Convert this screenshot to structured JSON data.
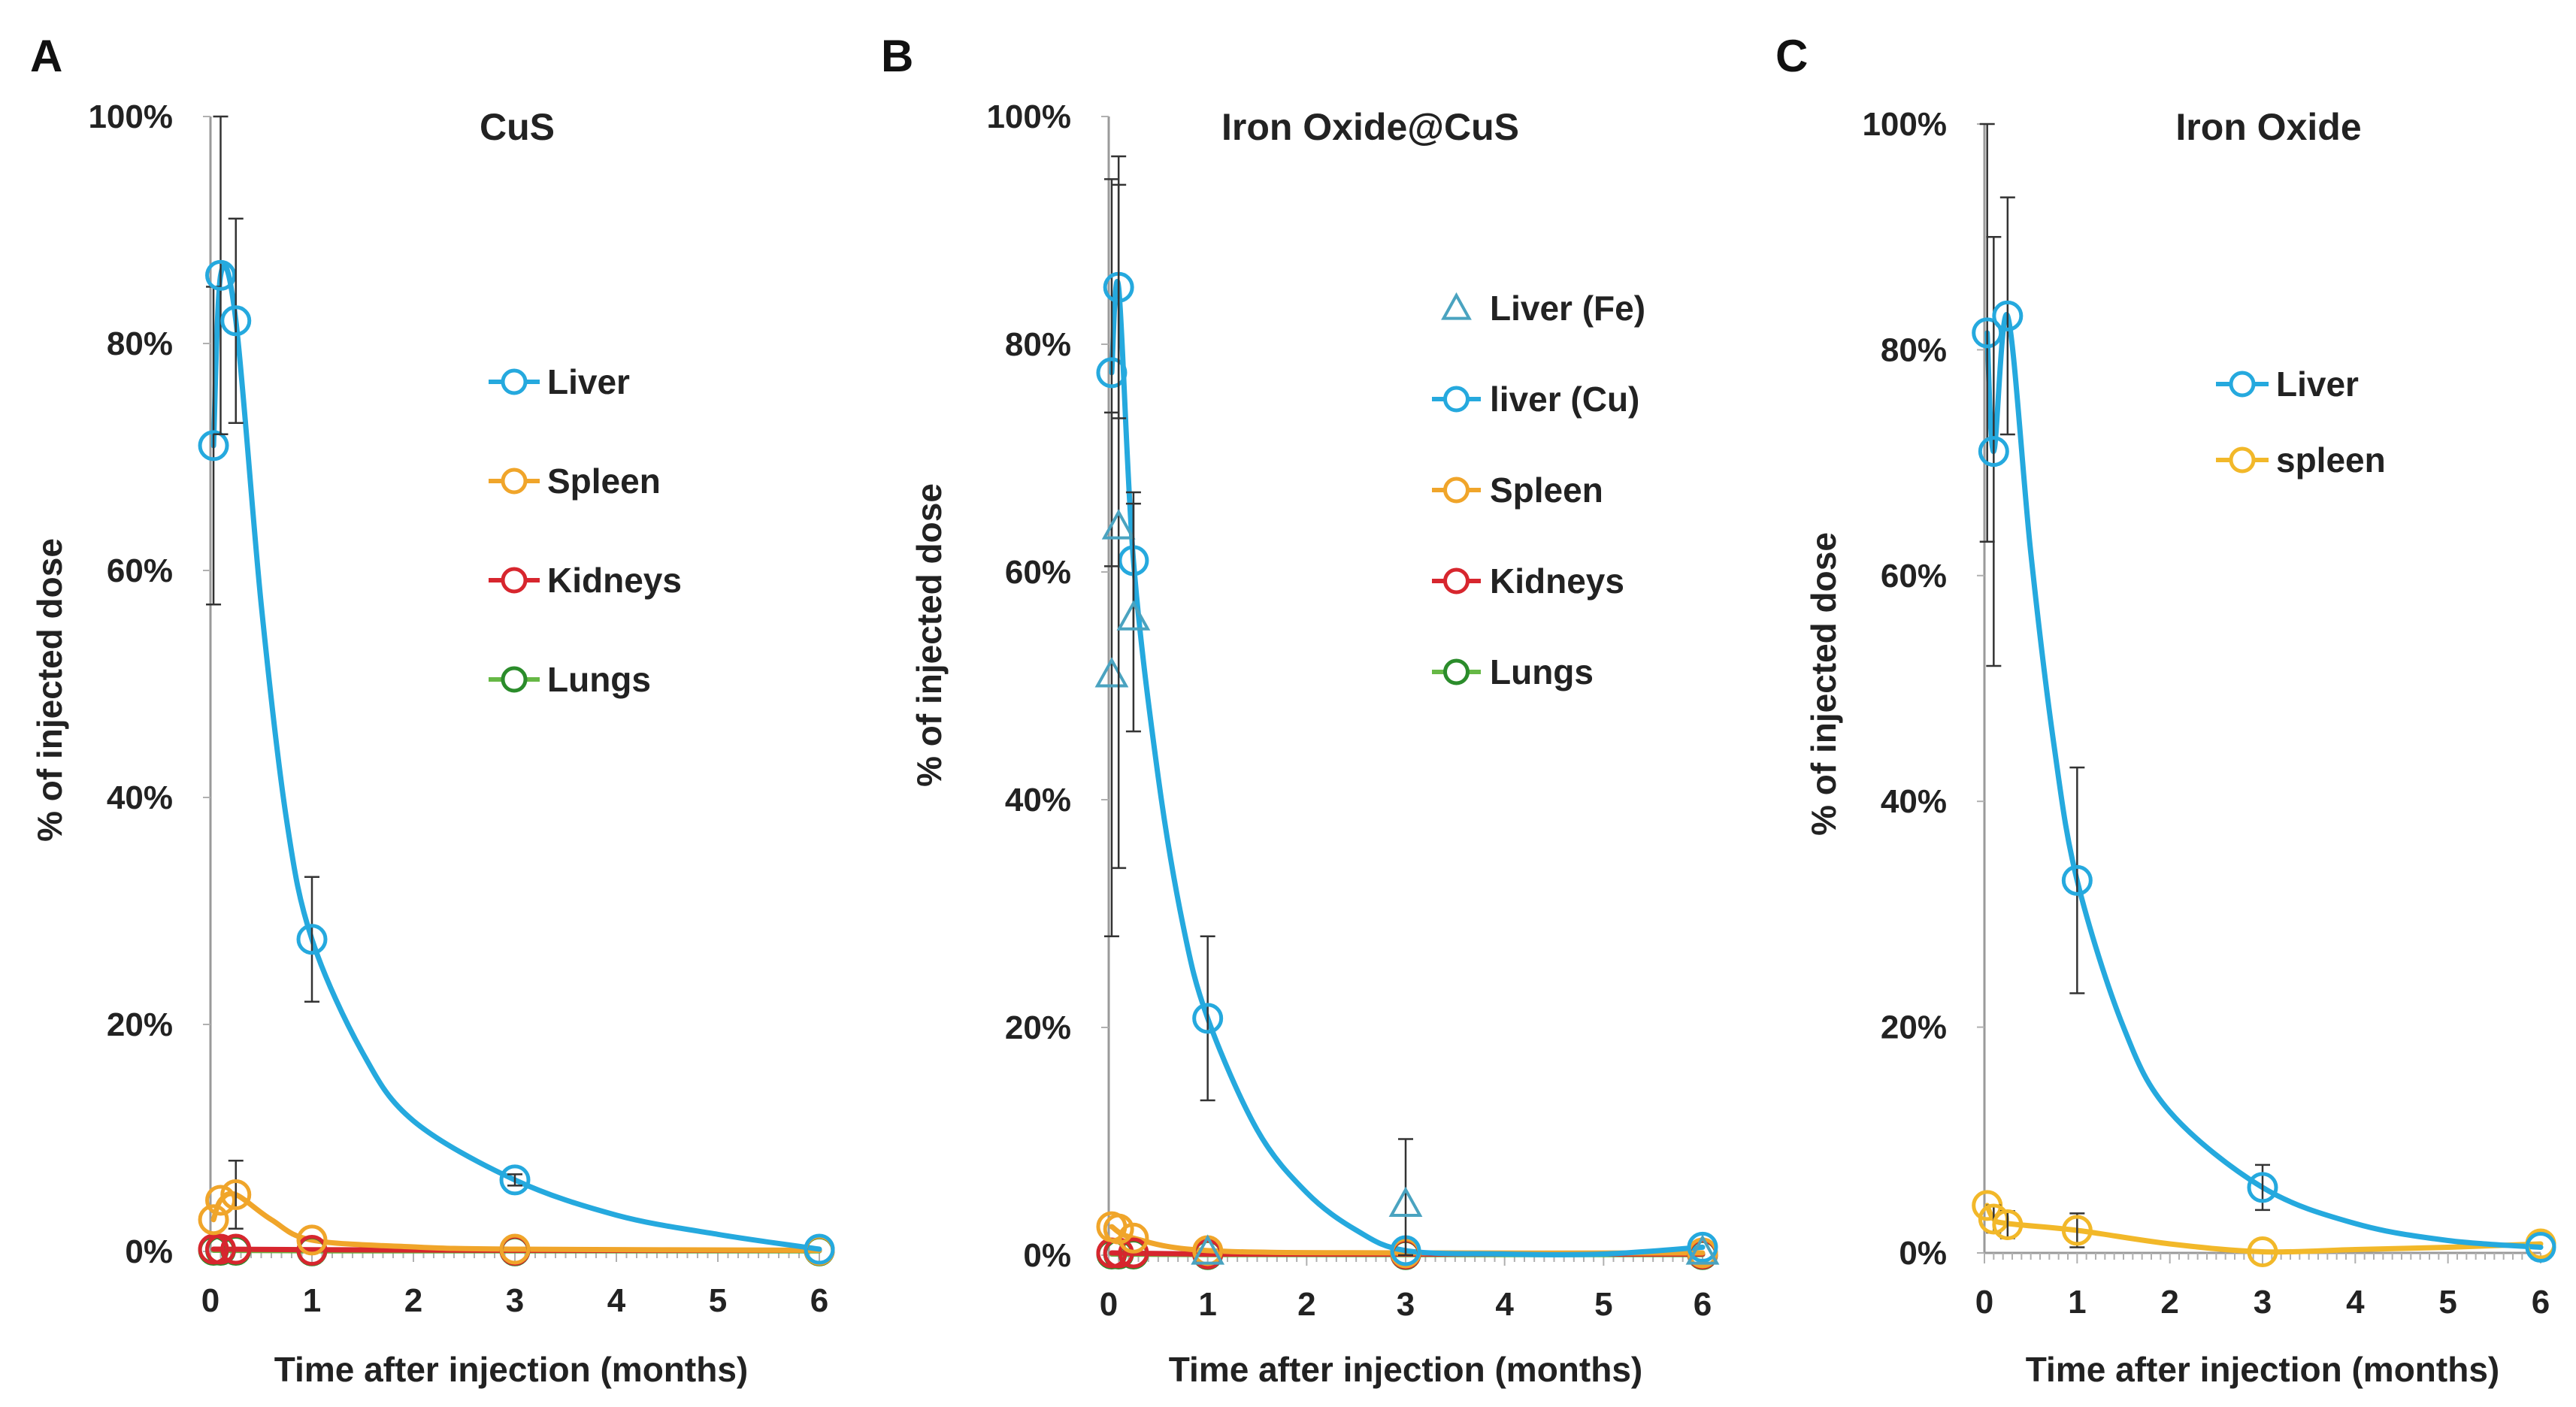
{
  "colors": {
    "liver": "#25a9de",
    "liver_fe": "#4aa3c0",
    "spleen": "#f0a52a",
    "spleen_c": "#f2b829",
    "kidneys": "#d7262e",
    "lungs": "#66b845",
    "lungs_marker": "#2b8c2b"
  },
  "chart_data": [
    {
      "type": "scatter",
      "panel": "A",
      "title": "CuS",
      "xlabel": "Time after injection (months)",
      "ylabel": "% of injected dose",
      "xlim": [
        0,
        6
      ],
      "ylim": [
        0,
        100
      ],
      "x_ticks": [
        "0",
        "1",
        "2",
        "3",
        "4",
        "5",
        "6"
      ],
      "y_ticks": [
        "0%",
        "20%",
        "40%",
        "60%",
        "80%",
        "100%"
      ],
      "series": [
        {
          "name": "Liver",
          "color_key": "liver",
          "marker": "circle",
          "points": [
            {
              "x": 0.03,
              "y": 71,
              "err": 14
            },
            {
              "x": 0.1,
              "y": 86,
              "err": 14
            },
            {
              "x": 0.25,
              "y": 82,
              "err": 9
            },
            {
              "x": 1,
              "y": 27.5,
              "err": 5.5
            },
            {
              "x": 3,
              "y": 6.3,
              "err": 0.5
            },
            {
              "x": 6,
              "y": 0.2,
              "err": 0
            }
          ],
          "curve": [
            [
              0.03,
              71
            ],
            [
              0.1,
              86
            ],
            [
              0.25,
              82
            ],
            [
              0.5,
              57
            ],
            [
              0.75,
              38
            ],
            [
              1,
              27.5
            ],
            [
              1.5,
              17.5
            ],
            [
              2,
              11.5
            ],
            [
              3,
              6.3
            ],
            [
              4,
              3.2
            ],
            [
              5,
              1.5
            ],
            [
              6,
              0.2
            ]
          ]
        },
        {
          "name": "Spleen",
          "color_key": "spleen",
          "marker": "circle",
          "points": [
            {
              "x": 0.03,
              "y": 2.8,
              "err": 0
            },
            {
              "x": 0.1,
              "y": 4.5,
              "err": 0
            },
            {
              "x": 0.25,
              "y": 5.0,
              "err": 3.0
            },
            {
              "x": 1,
              "y": 1.0,
              "err": 0
            },
            {
              "x": 3,
              "y": 0.2,
              "err": 0
            },
            {
              "x": 6,
              "y": 0.1,
              "err": 0
            }
          ],
          "curve": [
            [
              0.03,
              2.8
            ],
            [
              0.1,
              4.5
            ],
            [
              0.25,
              5.0
            ],
            [
              0.6,
              2.8
            ],
            [
              1,
              1.0
            ],
            [
              2,
              0.4
            ],
            [
              3,
              0.2
            ],
            [
              6,
              0.1
            ]
          ]
        },
        {
          "name": "Kidneys",
          "color_key": "kidneys",
          "marker": "circle",
          "points": [
            {
              "x": 0.03,
              "y": 0.2,
              "err": 0
            },
            {
              "x": 0.1,
              "y": 0.2,
              "err": 0
            },
            {
              "x": 0.25,
              "y": 0.2,
              "err": 0
            },
            {
              "x": 1,
              "y": 0.1,
              "err": 0
            },
            {
              "x": 3,
              "y": 0.1,
              "err": 0
            },
            {
              "x": 6,
              "y": 0.1,
              "err": 0
            }
          ],
          "curve": [
            [
              0.03,
              0.2
            ],
            [
              1,
              0.15
            ],
            [
              3,
              0.1
            ],
            [
              6,
              0.1
            ]
          ]
        },
        {
          "name": "Lungs",
          "color_key": "lungs",
          "marker": "circle",
          "points": [
            {
              "x": 0.03,
              "y": 0.1,
              "err": 0
            },
            {
              "x": 0.1,
              "y": 0.1,
              "err": 0
            },
            {
              "x": 0.25,
              "y": 0.1,
              "err": 0
            },
            {
              "x": 1,
              "y": 0.05,
              "err": 0
            },
            {
              "x": 3,
              "y": 0.05,
              "err": 0
            },
            {
              "x": 6,
              "y": 0.05,
              "err": 0
            }
          ],
          "curve": [
            [
              0.03,
              0.1
            ],
            [
              1,
              0.05
            ],
            [
              3,
              0.05
            ],
            [
              6,
              0.05
            ]
          ]
        }
      ],
      "legend": {
        "placement": "right"
      }
    },
    {
      "type": "scatter",
      "panel": "B",
      "title": "Iron Oxide@CuS",
      "xlabel": "Time after injection (months)",
      "ylabel": "% of injected dose",
      "xlim": [
        0,
        6
      ],
      "ylim": [
        0,
        100
      ],
      "x_ticks": [
        "0",
        "1",
        "2",
        "3",
        "4",
        "5",
        "6"
      ],
      "y_ticks": [
        "0%",
        "20%",
        "40%",
        "60%",
        "80%",
        "100%"
      ],
      "series": [
        {
          "name": "Liver (Fe)",
          "color_key": "liver_fe",
          "marker": "triangle",
          "no_line": true,
          "points": [
            {
              "x": 0.03,
              "y": 51,
              "err": 23
            },
            {
              "x": 0.1,
              "y": 64,
              "err": 30
            },
            {
              "x": 0.25,
              "y": 56,
              "err": 10
            },
            {
              "x": 1,
              "y": 0.3,
              "err": 0
            },
            {
              "x": 3,
              "y": 4.5,
              "err": 5.7
            },
            {
              "x": 6,
              "y": 0.3,
              "err": 0
            }
          ]
        },
        {
          "name": "liver (Cu)",
          "color_key": "liver",
          "marker": "circle",
          "points": [
            {
              "x": 0.03,
              "y": 77.5,
              "err": 17
            },
            {
              "x": 0.1,
              "y": 85,
              "err": 11.5
            },
            {
              "x": 0.25,
              "y": 61,
              "err": 6
            },
            {
              "x": 1,
              "y": 20.8,
              "err": 7.2
            },
            {
              "x": 3,
              "y": 0.4,
              "err": 0
            },
            {
              "x": 6,
              "y": 0.7,
              "err": 0
            }
          ],
          "curve": [
            [
              0.03,
              77.5
            ],
            [
              0.1,
              85
            ],
            [
              0.25,
              61
            ],
            [
              0.5,
              42
            ],
            [
              0.75,
              29
            ],
            [
              1,
              20.8
            ],
            [
              1.5,
              11
            ],
            [
              2,
              5.5
            ],
            [
              2.5,
              2.2
            ],
            [
              3,
              0.4
            ],
            [
              4,
              0.1
            ],
            [
              5,
              0.1
            ],
            [
              6,
              0.7
            ]
          ]
        },
        {
          "name": "Spleen",
          "color_key": "spleen",
          "marker": "circle",
          "points": [
            {
              "x": 0.03,
              "y": 2.5,
              "err": 0
            },
            {
              "x": 0.1,
              "y": 2.3,
              "err": 0
            },
            {
              "x": 0.25,
              "y": 1.5,
              "err": 0
            },
            {
              "x": 1,
              "y": 0.4,
              "err": 0
            },
            {
              "x": 3,
              "y": 0.2,
              "err": 0
            },
            {
              "x": 6,
              "y": 0.2,
              "err": 0
            }
          ],
          "curve": [
            [
              0.03,
              2.5
            ],
            [
              0.25,
              1.5
            ],
            [
              1,
              0.4
            ],
            [
              3,
              0.2
            ],
            [
              6,
              0.2
            ]
          ]
        },
        {
          "name": "Kidneys",
          "color_key": "kidneys",
          "marker": "circle",
          "points": [
            {
              "x": 0.03,
              "y": 0.2,
              "err": 0
            },
            {
              "x": 0.1,
              "y": 0.2,
              "err": 0
            },
            {
              "x": 0.25,
              "y": 0.2,
              "err": 0
            },
            {
              "x": 1,
              "y": 0.1,
              "err": 0
            },
            {
              "x": 3,
              "y": 0.1,
              "err": 0
            },
            {
              "x": 6,
              "y": 0.1,
              "err": 0
            }
          ],
          "curve": [
            [
              0.03,
              0.2
            ],
            [
              1,
              0.1
            ],
            [
              3,
              0.1
            ],
            [
              6,
              0.1
            ]
          ]
        },
        {
          "name": "Lungs",
          "color_key": "lungs",
          "marker": "circle",
          "points": [
            {
              "x": 0.03,
              "y": 0.1,
              "err": 0
            },
            {
              "x": 0.1,
              "y": 0.1,
              "err": 0
            },
            {
              "x": 0.25,
              "y": 0.1,
              "err": 0
            },
            {
              "x": 1,
              "y": 0.05,
              "err": 0
            },
            {
              "x": 3,
              "y": 0.05,
              "err": 0
            },
            {
              "x": 6,
              "y": 0.05,
              "err": 0
            }
          ],
          "curve": [
            [
              0.03,
              0.1
            ],
            [
              1,
              0.05
            ],
            [
              3,
              0.05
            ],
            [
              6,
              0.05
            ]
          ]
        }
      ],
      "legend": {
        "placement": "right"
      }
    },
    {
      "type": "scatter",
      "panel": "C",
      "title": "Iron Oxide",
      "xlabel": "Time after injection (months)",
      "ylabel": "% of injected dose",
      "xlim": [
        0,
        6
      ],
      "ylim": [
        0,
        100
      ],
      "x_ticks": [
        "0",
        "1",
        "2",
        "3",
        "4",
        "5",
        "6"
      ],
      "y_ticks": [
        "0%",
        "20%",
        "40%",
        "60%",
        "80%",
        "100%"
      ],
      "series": [
        {
          "name": "Liver",
          "color_key": "liver",
          "marker": "circle",
          "points": [
            {
              "x": 0.03,
              "y": 81.5,
              "err": 18.5
            },
            {
              "x": 0.1,
              "y": 71,
              "err": 19
            },
            {
              "x": 0.25,
              "y": 83,
              "err": 10.5
            },
            {
              "x": 1,
              "y": 33,
              "err": 10
            },
            {
              "x": 3,
              "y": 5.8,
              "err": 2
            },
            {
              "x": 6,
              "y": 0.5,
              "err": 0
            }
          ],
          "curve": [
            [
              0.03,
              81.5
            ],
            [
              0.1,
              71
            ],
            [
              0.25,
              83
            ],
            [
              0.5,
              62
            ],
            [
              0.75,
              45
            ],
            [
              1,
              33
            ],
            [
              1.5,
              20
            ],
            [
              2,
              12.5
            ],
            [
              3,
              5.8
            ],
            [
              4,
              2.6
            ],
            [
              5,
              1.1
            ],
            [
              6,
              0.5
            ]
          ]
        },
        {
          "name": "spleen",
          "color_key": "spleen_c",
          "marker": "circle",
          "points": [
            {
              "x": 0.03,
              "y": 4.2,
              "err": 0
            },
            {
              "x": 0.1,
              "y": 3.0,
              "err": 1.2
            },
            {
              "x": 0.25,
              "y": 2.5,
              "err": 1.2
            },
            {
              "x": 1,
              "y": 2.0,
              "err": 1.5
            },
            {
              "x": 3,
              "y": 0.1,
              "err": 0
            },
            {
              "x": 6,
              "y": 0.8,
              "err": 0
            }
          ],
          "curve": [
            [
              0.03,
              4.2
            ],
            [
              0.1,
              3.0
            ],
            [
              0.25,
              2.6
            ],
            [
              1,
              2.0
            ],
            [
              2,
              0.8
            ],
            [
              3,
              0.1
            ],
            [
              4,
              0.3
            ],
            [
              5,
              0.5
            ],
            [
              6,
              0.8
            ]
          ]
        }
      ],
      "legend": {
        "placement": "right"
      }
    }
  ]
}
